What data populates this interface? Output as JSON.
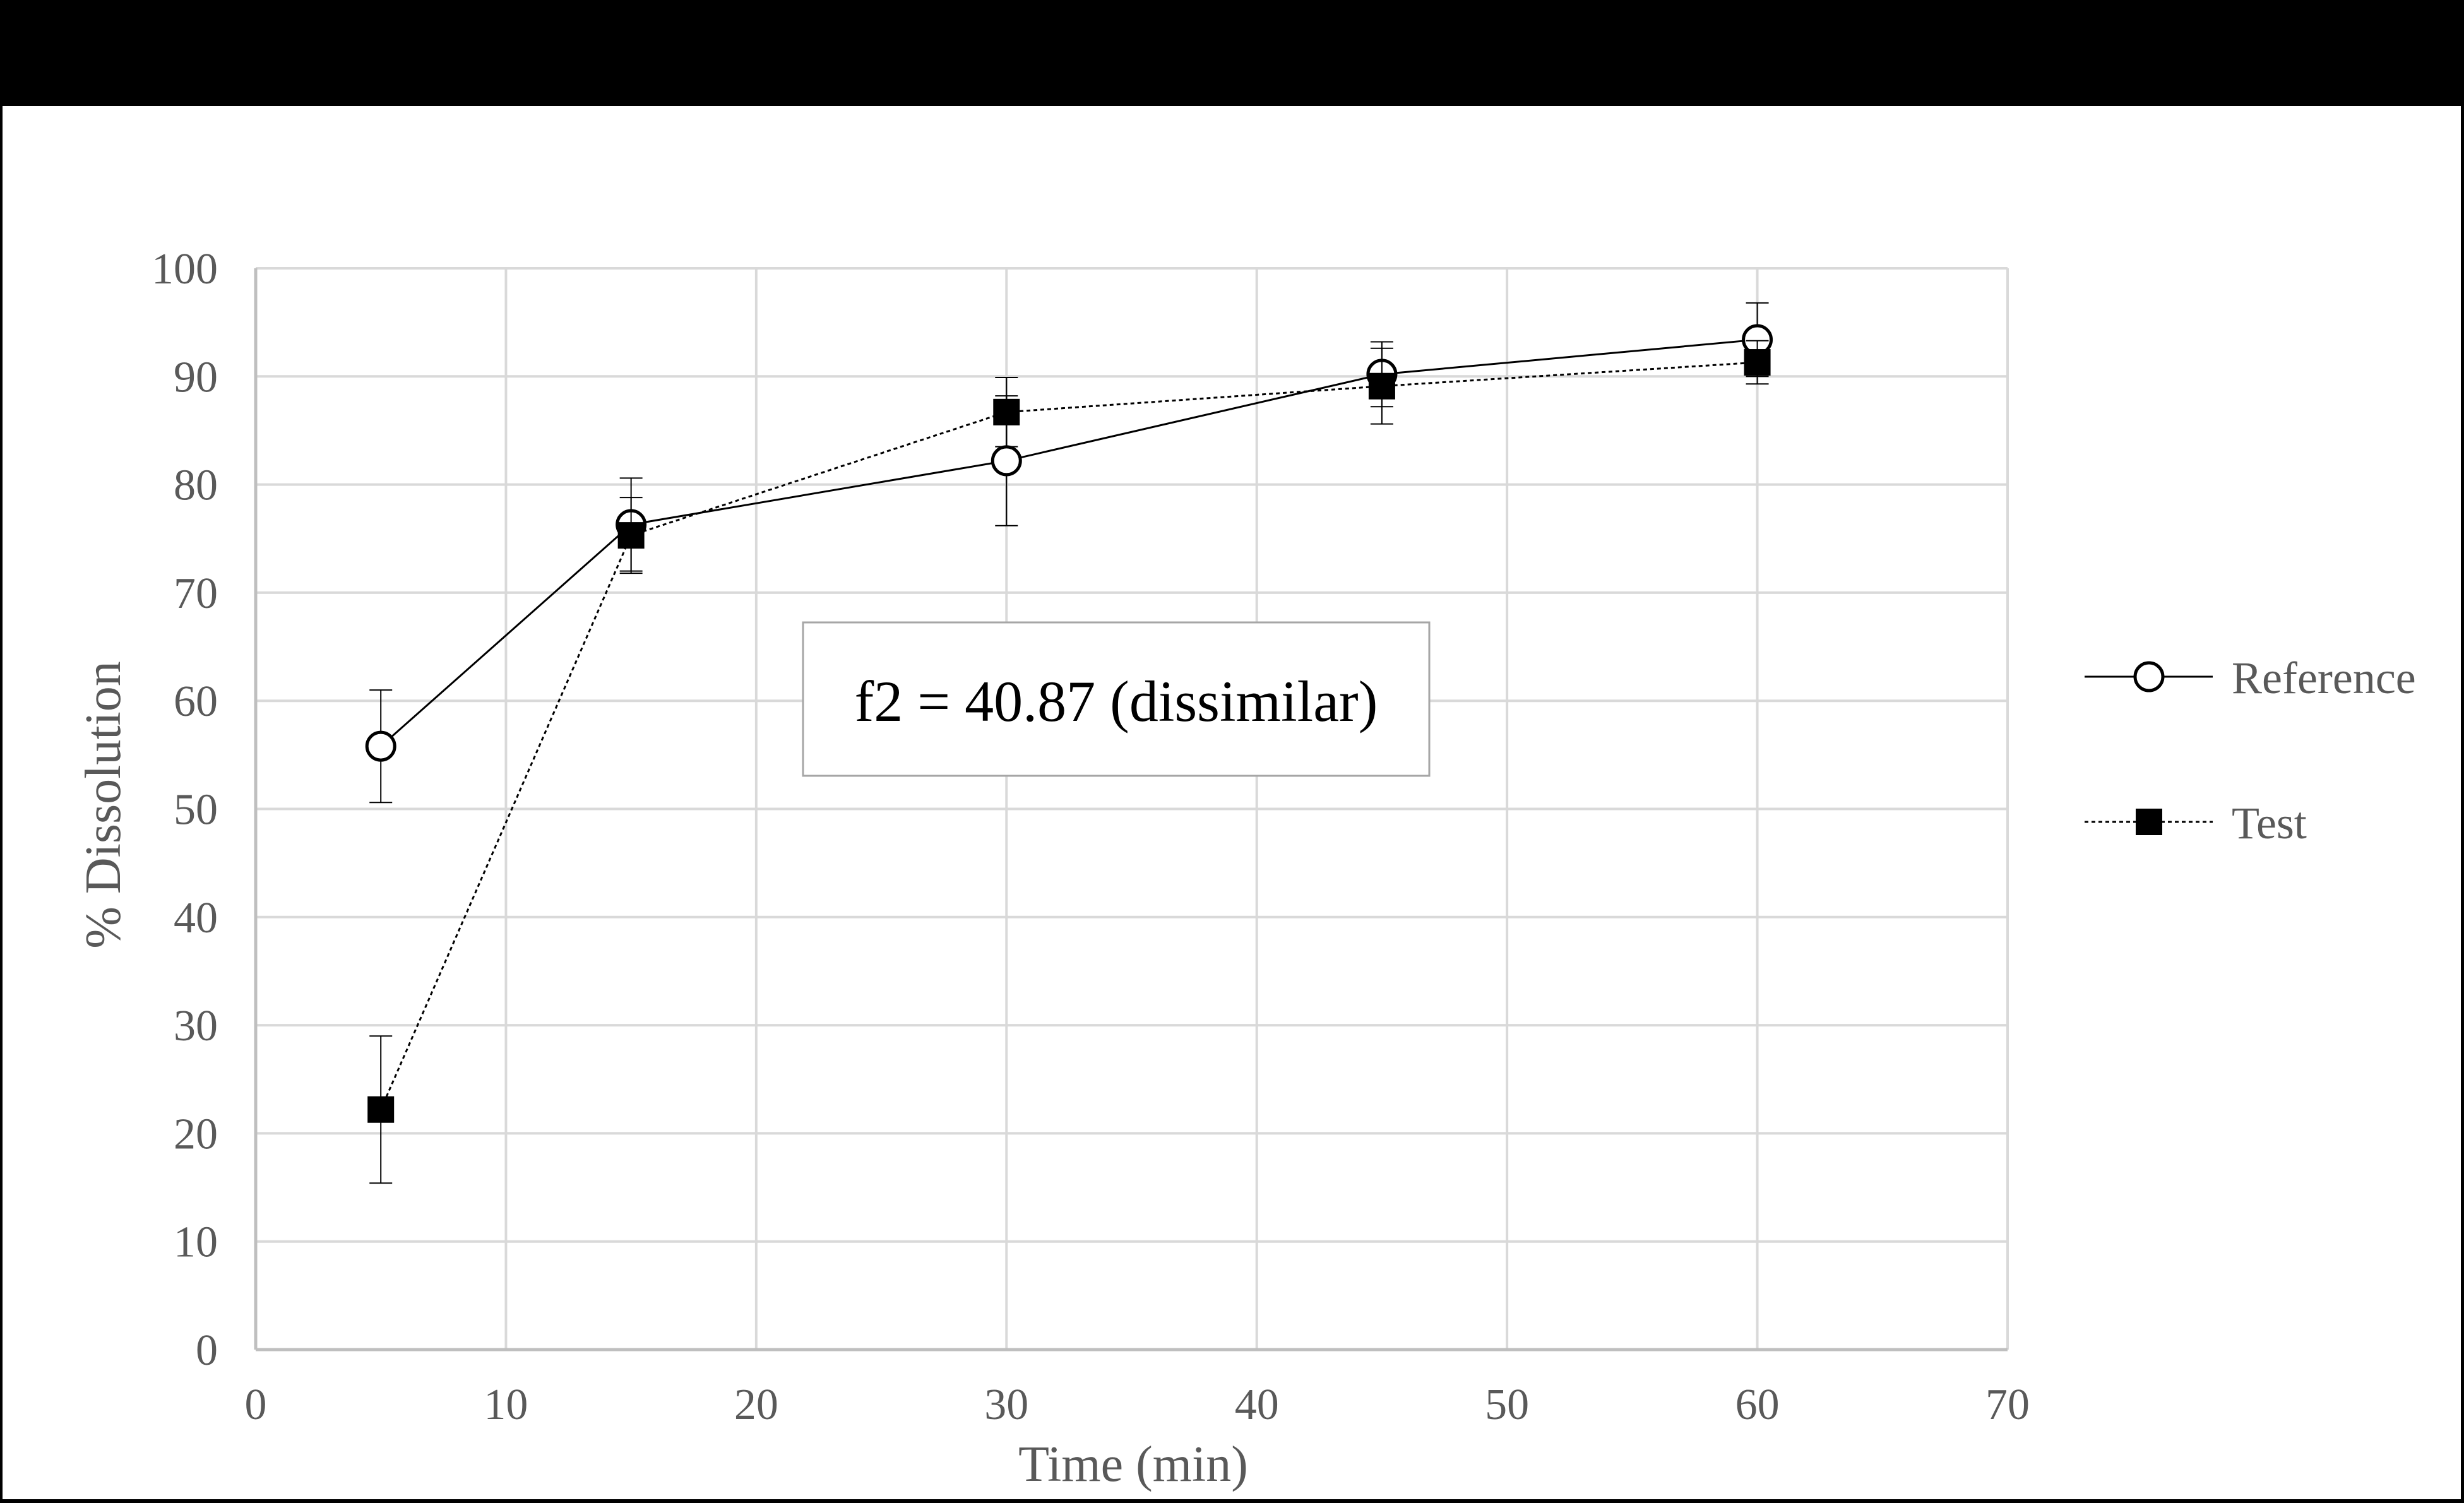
{
  "chart_data": {
    "type": "line",
    "title": "",
    "xlabel": "Time (min)",
    "ylabel": "% Dissolution",
    "xlim": [
      0,
      70
    ],
    "ylim": [
      0,
      100
    ],
    "x_ticks": [
      0,
      10,
      20,
      30,
      40,
      50,
      60,
      70
    ],
    "y_ticks": [
      0,
      10,
      20,
      30,
      40,
      50,
      60,
      70,
      80,
      90,
      100
    ],
    "grid": true,
    "legend_position": "right",
    "annotation": "f2 = 40.87 (dissimilar)",
    "series": [
      {
        "name": "Reference",
        "marker": "open-circle",
        "line_style": "solid",
        "color": "#000000",
        "x": [
          5,
          15,
          30,
          45,
          60
        ],
        "y": [
          55.8,
          76.3,
          82.2,
          90.2,
          93.4
        ],
        "error": [
          5.2,
          4.3,
          6.0,
          3.0,
          3.4
        ]
      },
      {
        "name": "Test",
        "marker": "filled-square",
        "line_style": "dotted",
        "color": "#000000",
        "x": [
          5,
          15,
          30,
          45,
          60
        ],
        "y": [
          22.2,
          75.3,
          86.7,
          89.1,
          91.3
        ],
        "error": [
          6.8,
          3.5,
          3.2,
          3.5,
          2.0
        ]
      }
    ]
  },
  "colors": {
    "header_band": "#000000",
    "grid": "#d9d9d9",
    "text": "#595959",
    "frame": "#000000"
  }
}
